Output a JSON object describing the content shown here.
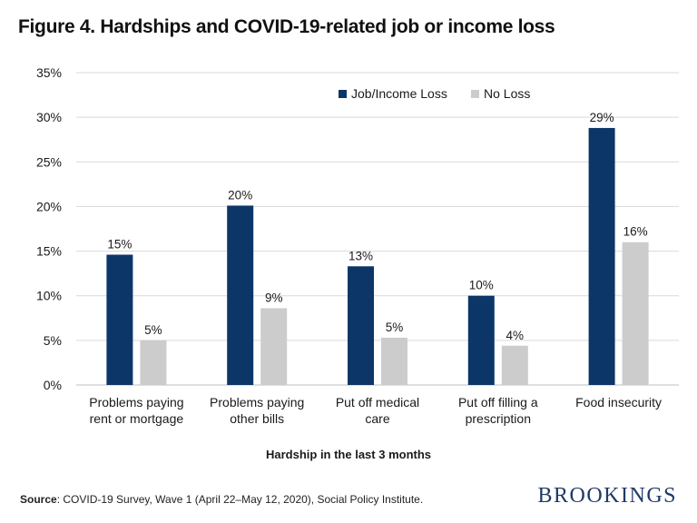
{
  "title": "Figure 4. Hardships and COVID-19-related job or income loss",
  "footer": {
    "source_label": "Source",
    "source_text": ": COVID-19 Survey, Wave 1 (April 22–May 12, 2020), Social Policy Institute.",
    "brand": "BROOKINGS"
  },
  "colors": {
    "job_income_loss": "#0d3668",
    "no_loss": "#cccccc",
    "grid": "#d9d9d9",
    "text": "#1a1a1a"
  },
  "chart_data": {
    "type": "bar",
    "title": "Figure 4. Hardships and COVID-19-related job or income loss",
    "xlabel": "Hardship in the last 3 months",
    "ylabel": "",
    "ylim": [
      0,
      35
    ],
    "yticks": [
      "0%",
      "5%",
      "10%",
      "15%",
      "20%",
      "25%",
      "30%",
      "35%"
    ],
    "ytick_values": [
      0,
      5,
      10,
      15,
      20,
      25,
      30,
      35
    ],
    "grid": true,
    "legend_position": "top-right",
    "categories": [
      [
        "Problems paying",
        "rent or mortgage"
      ],
      [
        "Problems paying",
        "other bills"
      ],
      [
        "Put off medical",
        "care"
      ],
      [
        "Put off filling a",
        "prescription"
      ],
      [
        "Food insecurity"
      ]
    ],
    "series": [
      {
        "name": "Job/Income Loss",
        "color": "#0d3668",
        "values": [
          14.6,
          20.1,
          13.3,
          10.0,
          28.8
        ],
        "labels": [
          "15%",
          "20%",
          "13%",
          "10%",
          "29%"
        ]
      },
      {
        "name": "No Loss",
        "color": "#cccccc",
        "values": [
          5.0,
          8.6,
          5.3,
          4.4,
          16.0
        ],
        "labels": [
          "5%",
          "9%",
          "5%",
          "4%",
          "16%"
        ]
      }
    ]
  }
}
